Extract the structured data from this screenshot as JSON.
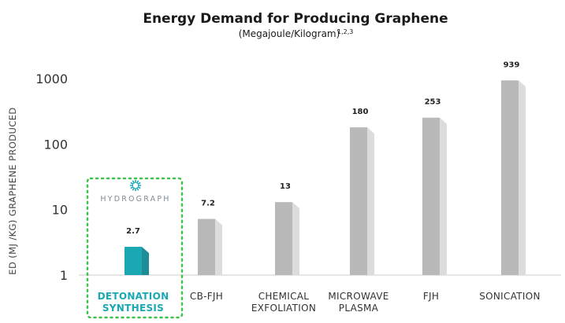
{
  "chart_data": {
    "type": "bar",
    "title": "Energy Demand for Producing Graphene",
    "subtitle": "(Megajoule/Kilogram)",
    "subtitle_superscript": "1,2,3",
    "ylabel": "ED (MJ /KG) GRAPHENE PRODUCED",
    "yscale": "log",
    "ylim": [
      1,
      1000
    ],
    "yticks": [
      1,
      10,
      100,
      1000
    ],
    "grid": false,
    "categories": [
      [
        "DETONATION",
        "SYNTHESIS"
      ],
      [
        "CB-FJH"
      ],
      [
        "CHEMICAL",
        "EXFOLIATION"
      ],
      [
        "MICROWAVE",
        "PLASMA"
      ],
      [
        "FJH"
      ],
      [
        "SONICATION"
      ]
    ],
    "values": [
      2.7,
      7.2,
      13,
      180,
      253,
      939
    ],
    "value_labels": [
      "2.7",
      "7.2",
      "13",
      "180",
      "253",
      "939"
    ],
    "highlight_index": 0,
    "highlight_brand": "HYDROGRAPH"
  },
  "colors": {
    "highlight": "#1aa8b5",
    "highlight_side": "#1d8d97",
    "bar": "#b9b9b9",
    "bar_side": "#dcdcdc",
    "dotted_box": "#3ec24e",
    "axis": "#cccccc"
  },
  "icons": {
    "brand_logo": "hexagon-sun-logo-icon"
  }
}
